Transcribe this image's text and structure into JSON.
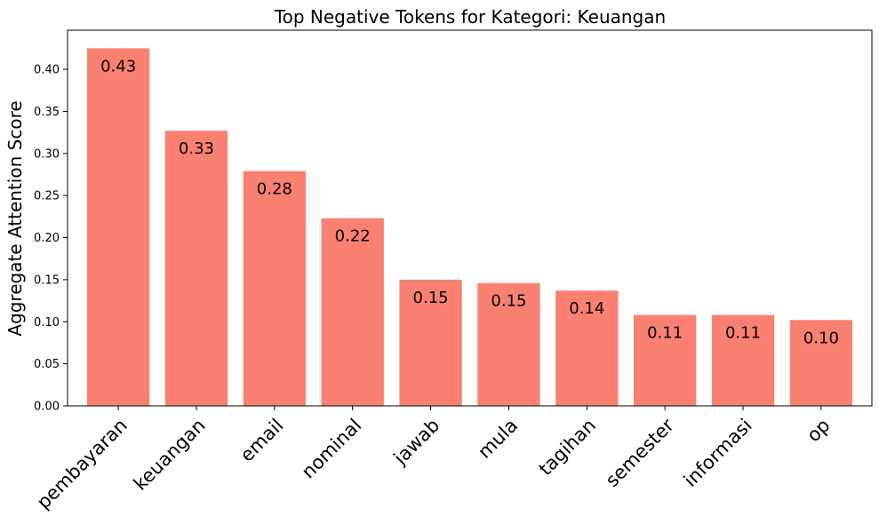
{
  "chart_data": {
    "type": "bar",
    "title": "Top Negative Tokens for Kategori: Keuangan",
    "xlabel": "",
    "ylabel": "Aggregate Attention Score",
    "categories": [
      "pembayaran",
      "keuangan",
      "email",
      "nominal",
      "jawab",
      "mula",
      "tagihan",
      "semester",
      "informasi",
      "op"
    ],
    "values": [
      0.425,
      0.327,
      0.279,
      0.223,
      0.15,
      0.146,
      0.137,
      0.108,
      0.108,
      0.102
    ],
    "data_labels": [
      "0.43",
      "0.33",
      "0.28",
      "0.22",
      "0.15",
      "0.15",
      "0.14",
      "0.11",
      "0.11",
      "0.10"
    ],
    "yticks": [
      0.0,
      0.05,
      0.1,
      0.15,
      0.2,
      0.25,
      0.3,
      0.35,
      0.4
    ],
    "ytick_labels": [
      "0.00",
      "0.05",
      "0.10",
      "0.15",
      "0.20",
      "0.25",
      "0.30",
      "0.35",
      "0.40"
    ],
    "ylim": [
      0,
      0.4465
    ],
    "grid": false,
    "bar_color": "#FA8072"
  }
}
